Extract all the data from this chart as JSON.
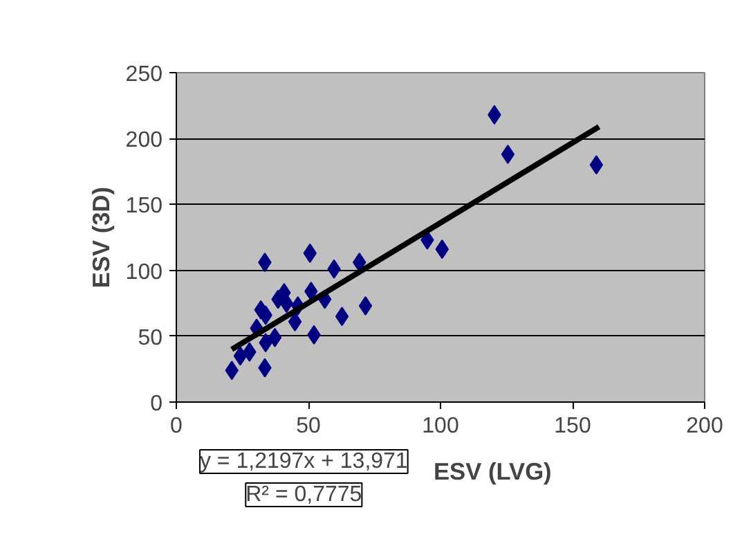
{
  "chart_data": {
    "type": "scatter",
    "xlabel": "ESV (LVG)",
    "ylabel": "ESV (3D)",
    "xlim": [
      0,
      200
    ],
    "ylim": [
      0,
      250
    ],
    "xticks": [
      0,
      50,
      100,
      150,
      200
    ],
    "yticks": [
      0,
      50,
      100,
      150,
      200,
      250
    ],
    "grid": "y",
    "marker": "diamond",
    "series": [
      {
        "color": "#000080",
        "x": [
          21,
          33.5,
          33.5,
          50.6,
          59.7,
          69.3,
          71.6,
          62.7,
          52.1,
          44.9,
          56.2,
          51,
          40.8,
          38.5,
          46,
          32,
          33.8,
          30.4,
          33.8,
          37.3,
          27.7,
          24.2,
          41.7,
          120.4,
          125.5,
          159,
          95,
          100.6
        ],
        "values": [
          24,
          26,
          106,
          113,
          101,
          106,
          73,
          65,
          51,
          61,
          78,
          84,
          83,
          78,
          73,
          70,
          66,
          56,
          45,
          49,
          38,
          35,
          75,
          218,
          188,
          180,
          123,
          116
        ]
      },
      {
        "type": "line",
        "marker": "none",
        "color": "#000000",
        "x": [
          21,
          160
        ],
        "values": [
          40,
          209
        ]
      }
    ],
    "annotations": [
      "y = 1,2197x + 13,971",
      "R² = 0,7775"
    ]
  }
}
